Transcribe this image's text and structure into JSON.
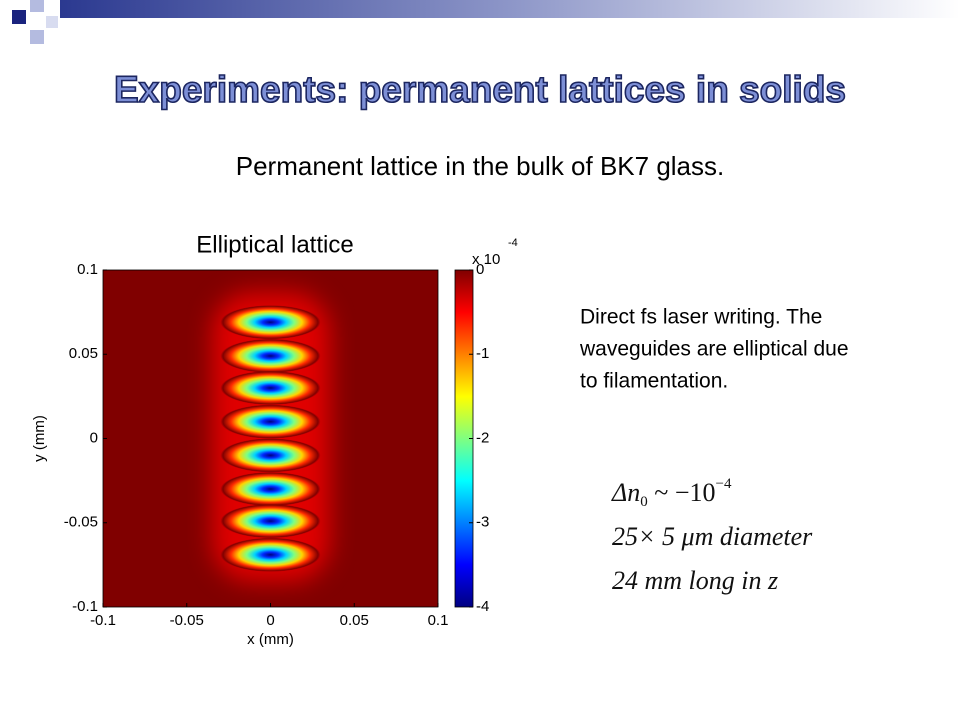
{
  "header": {
    "title": "Experiments: permanent lattices in solids",
    "subtitle": "Permanent lattice in the bulk of BK7 glass."
  },
  "chart_data": {
    "type": "heatmap",
    "title": "Elliptical lattice",
    "xlabel": "x (mm)",
    "ylabel": "y (mm)",
    "xlim": [
      -0.1,
      0.1
    ],
    "ylim": [
      -0.1,
      0.1
    ],
    "xticks": [
      -0.1,
      -0.05,
      0,
      0.05,
      0.1
    ],
    "yticks": [
      0.1,
      0.05,
      0,
      -0.05,
      -0.1
    ],
    "waveguides": {
      "x": [
        0,
        0,
        0,
        0,
        0,
        0,
        0,
        0
      ],
      "y": [
        0.069,
        0.049,
        0.03,
        0.01,
        -0.01,
        -0.03,
        -0.049,
        -0.069
      ],
      "values": [
        -4,
        -4,
        -4,
        -4,
        -4,
        -4,
        -4,
        -4
      ]
    },
    "colorbar": {
      "clim": [
        -4,
        0
      ],
      "ticks": [
        0,
        -1,
        -2,
        -3,
        -4
      ],
      "multiplier": "x 10",
      "exponent": "-4"
    }
  },
  "notes": {
    "lines": [
      "Direct fs laser writing. The",
      "waveguides are elliptical due",
      "to filamentation."
    ]
  },
  "equations": [
    {
      "main": "Δn",
      "sub": "0",
      "rest": " ~ −10",
      "sup": "−4"
    },
    {
      "text": "25× 5  μm  diameter"
    },
    {
      "text": "24 mm  long  in  z"
    }
  ]
}
